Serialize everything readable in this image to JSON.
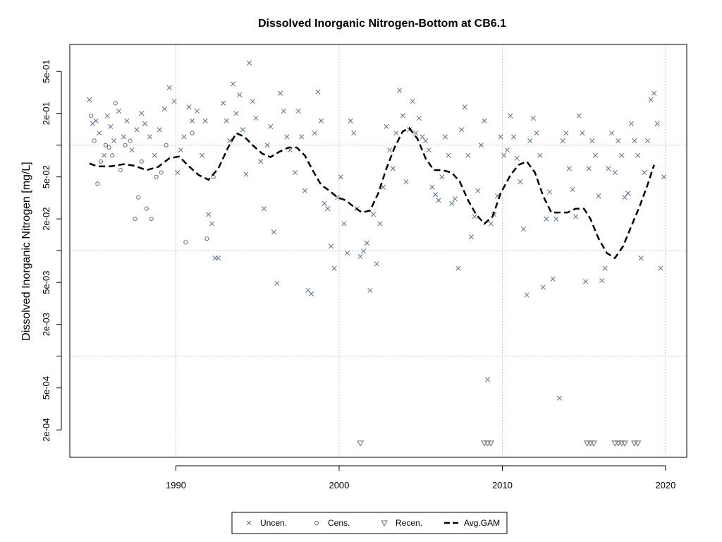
{
  "chart_data": {
    "type": "scatter",
    "title": "Dissolved Inorganic Nitrogen-Bottom at CB6.1",
    "xlabel": "",
    "ylabel": "Dissolved Inorganic Nitrogen [mg/L]",
    "xlim": [
      1983.5,
      2021.3
    ],
    "ylim": [
      0.00011,
      0.9
    ],
    "y_scale": "log",
    "grid": true,
    "x_ticks": [
      1990,
      2000,
      2010,
      2020
    ],
    "x_tick_labels": [
      "1990",
      "2000",
      "2010",
      "2020"
    ],
    "y_ticks": [
      0.0002,
      0.0005,
      0.002,
      0.005,
      0.02,
      0.05,
      0.2,
      0.5
    ],
    "y_tick_labels": [
      "2e-04",
      "5e-04",
      "2e-03",
      "5e-03",
      "2e-02",
      "5e-02",
      "2e-01",
      "5e-01"
    ],
    "y_gridlines": [
      0.001,
      0.01,
      0.1
    ],
    "x_gridlines": [
      1990,
      2000,
      2010,
      2020
    ],
    "legend_position": "bottom",
    "legend": [
      {
        "label": "Uncen.",
        "symbol": "x"
      },
      {
        "label": "Cens.",
        "symbol": "o"
      },
      {
        "label": "Recen.",
        "symbol": "v"
      },
      {
        "label": "Avg.GAM",
        "symbol": "dash"
      }
    ],
    "series": [
      {
        "name": "Uncen.",
        "marker": "x",
        "color": "#5a6f8a",
        "points": [
          [
            1984.7,
            0.27
          ],
          [
            1984.9,
            0.16
          ],
          [
            1985.1,
            0.17
          ],
          [
            1985.3,
            0.13
          ],
          [
            1985.6,
            0.08
          ],
          [
            1985.8,
            0.19
          ],
          [
            1986.0,
            0.15
          ],
          [
            1986.2,
            0.11
          ],
          [
            1986.5,
            0.21
          ],
          [
            1986.8,
            0.12
          ],
          [
            1987.0,
            0.17
          ],
          [
            1987.3,
            0.09
          ],
          [
            1987.6,
            0.14
          ],
          [
            1987.9,
            0.2
          ],
          [
            1988.1,
            0.16
          ],
          [
            1988.4,
            0.12
          ],
          [
            1988.7,
            0.08
          ],
          [
            1989.0,
            0.14
          ],
          [
            1989.3,
            0.22
          ],
          [
            1989.6,
            0.35
          ],
          [
            1989.9,
            0.26
          ],
          [
            1990.1,
            0.055
          ],
          [
            1990.3,
            0.09
          ],
          [
            1990.5,
            0.12
          ],
          [
            1990.8,
            0.23
          ],
          [
            1991.0,
            0.17
          ],
          [
            1991.3,
            0.21
          ],
          [
            1991.6,
            0.08
          ],
          [
            1991.8,
            0.17
          ],
          [
            1992.0,
            0.022
          ],
          [
            1992.2,
            0.018
          ],
          [
            1992.4,
            0.0085
          ],
          [
            1992.6,
            0.0085
          ],
          [
            1992.9,
            0.25
          ],
          [
            1993.1,
            0.17
          ],
          [
            1993.3,
            0.11
          ],
          [
            1993.5,
            0.38
          ],
          [
            1993.7,
            0.2
          ],
          [
            1993.9,
            0.3
          ],
          [
            1994.1,
            0.14
          ],
          [
            1994.3,
            0.053
          ],
          [
            1994.5,
            0.6
          ],
          [
            1994.7,
            0.26
          ],
          [
            1994.9,
            0.18
          ],
          [
            1995.2,
            0.07
          ],
          [
            1995.4,
            0.025
          ],
          [
            1995.6,
            0.1
          ],
          [
            1995.8,
            0.15
          ],
          [
            1996.0,
            0.015
          ],
          [
            1996.2,
            0.0049
          ],
          [
            1996.4,
            0.31
          ],
          [
            1996.6,
            0.21
          ],
          [
            1996.8,
            0.12
          ],
          [
            1997.0,
            0.09
          ],
          [
            1997.3,
            0.055
          ],
          [
            1997.5,
            0.21
          ],
          [
            1997.7,
            0.12
          ],
          [
            1997.9,
            0.037
          ],
          [
            1998.1,
            0.0042
          ],
          [
            1998.3,
            0.0039
          ],
          [
            1998.5,
            0.13
          ],
          [
            1998.7,
            0.32
          ],
          [
            1998.9,
            0.17
          ],
          [
            1999.1,
            0.028
          ],
          [
            1999.3,
            0.025
          ],
          [
            1999.5,
            0.011
          ],
          [
            1999.7,
            0.0068
          ],
          [
            1999.9,
            0.032
          ],
          [
            2000.1,
            0.05
          ],
          [
            2000.3,
            0.018
          ],
          [
            2000.5,
            0.0095
          ],
          [
            2000.7,
            0.17
          ],
          [
            2000.9,
            0.13
          ],
          [
            2001.1,
            0.025
          ],
          [
            2001.3,
            0.0088
          ],
          [
            2001.5,
            0.0099
          ],
          [
            2001.7,
            0.0118
          ],
          [
            2001.9,
            0.0042
          ],
          [
            2002.1,
            0.022
          ],
          [
            2002.3,
            0.0075
          ],
          [
            2002.5,
            0.018
          ],
          [
            2002.7,
            0.04
          ],
          [
            2002.9,
            0.15
          ],
          [
            2003.1,
            0.09
          ],
          [
            2003.3,
            0.06
          ],
          [
            2003.5,
            0.13
          ],
          [
            2003.7,
            0.33
          ],
          [
            2003.9,
            0.19
          ],
          [
            2004.1,
            0.045
          ],
          [
            2004.3,
            0.14
          ],
          [
            2004.5,
            0.26
          ],
          [
            2004.7,
            0.13
          ],
          [
            2004.9,
            0.18
          ],
          [
            2005.1,
            0.12
          ],
          [
            2005.3,
            0.11
          ],
          [
            2005.5,
            0.09
          ],
          [
            2005.7,
            0.04
          ],
          [
            2005.9,
            0.034
          ],
          [
            2006.1,
            0.03
          ],
          [
            2006.3,
            0.05
          ],
          [
            2006.5,
            0.12
          ],
          [
            2006.7,
            0.08
          ],
          [
            2006.9,
            0.028
          ],
          [
            2007.1,
            0.031
          ],
          [
            2007.3,
            0.0068
          ],
          [
            2007.5,
            0.14
          ],
          [
            2007.7,
            0.23
          ],
          [
            2007.9,
            0.08
          ],
          [
            2008.1,
            0.0135
          ],
          [
            2008.3,
            0.021
          ],
          [
            2008.5,
            0.037
          ],
          [
            2008.7,
            0.1
          ],
          [
            2008.9,
            0.17
          ],
          [
            2009.1,
            0.0006
          ],
          [
            2009.3,
            0.018
          ],
          [
            2009.5,
            0.022
          ],
          [
            2009.7,
            0.033
          ],
          [
            2009.9,
            0.12
          ],
          [
            2010.1,
            0.08
          ],
          [
            2010.3,
            0.09
          ],
          [
            2010.5,
            0.19
          ],
          [
            2010.7,
            0.12
          ],
          [
            2010.9,
            0.075
          ],
          [
            2011.1,
            0.045
          ],
          [
            2011.3,
            0.016
          ],
          [
            2011.5,
            0.0038
          ],
          [
            2011.7,
            0.11
          ],
          [
            2011.9,
            0.18
          ],
          [
            2012.1,
            0.13
          ],
          [
            2012.3,
            0.08
          ],
          [
            2012.5,
            0.0045
          ],
          [
            2012.7,
            0.02
          ],
          [
            2012.9,
            0.036
          ],
          [
            2013.1,
            0.0054
          ],
          [
            2013.3,
            0.02
          ],
          [
            2013.5,
            0.0004
          ],
          [
            2013.7,
            0.11
          ],
          [
            2013.9,
            0.13
          ],
          [
            2014.1,
            0.06
          ],
          [
            2014.3,
            0.038
          ],
          [
            2014.5,
            0.021
          ],
          [
            2014.7,
            0.19
          ],
          [
            2014.9,
            0.13
          ],
          [
            2015.1,
            0.0051
          ],
          [
            2015.3,
            0.06
          ],
          [
            2015.5,
            0.11
          ],
          [
            2015.7,
            0.08
          ],
          [
            2015.9,
            0.033
          ],
          [
            2016.1,
            0.0052
          ],
          [
            2016.3,
            0.0068
          ],
          [
            2016.5,
            0.06
          ],
          [
            2016.7,
            0.13
          ],
          [
            2016.9,
            0.055
          ],
          [
            2017.1,
            0.11
          ],
          [
            2017.3,
            0.08
          ],
          [
            2017.5,
            0.032
          ],
          [
            2017.7,
            0.035
          ],
          [
            2017.9,
            0.16
          ],
          [
            2018.1,
            0.11
          ],
          [
            2018.3,
            0.08
          ],
          [
            2018.5,
            0.0085
          ],
          [
            2018.7,
            0.055
          ],
          [
            2018.9,
            0.11
          ],
          [
            2019.1,
            0.27
          ],
          [
            2019.3,
            0.31
          ],
          [
            2019.5,
            0.16
          ],
          [
            2019.7,
            0.0068
          ],
          [
            2019.9,
            0.05
          ]
        ]
      },
      {
        "name": "Cens.",
        "marker": "o",
        "color": "#6e6e6e",
        "points": [
          [
            1984.8,
            0.19
          ],
          [
            1985.0,
            0.11
          ],
          [
            1985.2,
            0.043
          ],
          [
            1985.4,
            0.07
          ],
          [
            1985.7,
            0.1
          ],
          [
            1985.9,
            0.095
          ],
          [
            1986.1,
            0.08
          ],
          [
            1986.3,
            0.25
          ],
          [
            1986.6,
            0.058
          ],
          [
            1986.9,
            0.1
          ],
          [
            1987.2,
            0.11
          ],
          [
            1987.5,
            0.02
          ],
          [
            1987.7,
            0.032
          ],
          [
            1987.9,
            0.07
          ],
          [
            1988.2,
            0.025
          ],
          [
            1988.5,
            0.02
          ],
          [
            1988.8,
            0.05
          ],
          [
            1989.1,
            0.055
          ],
          [
            1989.4,
            0.1
          ],
          [
            1990.6,
            0.012
          ],
          [
            1991.0,
            0.13
          ],
          [
            1991.9,
            0.013
          ],
          [
            1992.3,
            0.05
          ]
        ]
      },
      {
        "name": "Recen.",
        "marker": "v",
        "color": "#6e6e6e",
        "points": [
          [
            2001.3,
            0.00015
          ],
          [
            2008.9,
            0.00015
          ],
          [
            2009.1,
            0.00015
          ],
          [
            2009.3,
            0.00015
          ],
          [
            2015.2,
            0.00015
          ],
          [
            2015.4,
            0.00015
          ],
          [
            2015.6,
            0.00015
          ],
          [
            2016.9,
            0.00015
          ],
          [
            2017.1,
            0.00015
          ],
          [
            2017.3,
            0.00015
          ],
          [
            2017.5,
            0.00015
          ],
          [
            2018.1,
            0.00015
          ],
          [
            2018.3,
            0.00015
          ]
        ]
      },
      {
        "name": "Avg.GAM",
        "type": "line",
        "color": "#000000",
        "points": [
          [
            1984.7,
            0.067
          ],
          [
            1985.2,
            0.063
          ],
          [
            1986.0,
            0.063
          ],
          [
            1986.8,
            0.066
          ],
          [
            1987.4,
            0.064
          ],
          [
            1988.2,
            0.058
          ],
          [
            1988.9,
            0.062
          ],
          [
            1989.6,
            0.075
          ],
          [
            1990.2,
            0.078
          ],
          [
            1990.8,
            0.063
          ],
          [
            1991.4,
            0.052
          ],
          [
            1992.0,
            0.047
          ],
          [
            1992.6,
            0.06
          ],
          [
            1993.2,
            0.095
          ],
          [
            1993.7,
            0.13
          ],
          [
            1994.2,
            0.12
          ],
          [
            1994.7,
            0.1
          ],
          [
            1995.3,
            0.083
          ],
          [
            1995.8,
            0.077
          ],
          [
            1996.3,
            0.086
          ],
          [
            1996.9,
            0.095
          ],
          [
            1997.4,
            0.095
          ],
          [
            1997.9,
            0.08
          ],
          [
            1998.4,
            0.057
          ],
          [
            1998.9,
            0.042
          ],
          [
            1999.4,
            0.037
          ],
          [
            1999.9,
            0.032
          ],
          [
            2000.4,
            0.03
          ],
          [
            2000.9,
            0.026
          ],
          [
            2001.4,
            0.023
          ],
          [
            2001.9,
            0.024
          ],
          [
            2002.4,
            0.035
          ],
          [
            2002.9,
            0.06
          ],
          [
            2003.4,
            0.095
          ],
          [
            2003.9,
            0.135
          ],
          [
            2004.3,
            0.145
          ],
          [
            2004.8,
            0.115
          ],
          [
            2005.3,
            0.075
          ],
          [
            2005.8,
            0.058
          ],
          [
            2006.3,
            0.058
          ],
          [
            2006.9,
            0.055
          ],
          [
            2007.4,
            0.045
          ],
          [
            2007.9,
            0.03
          ],
          [
            2008.4,
            0.022
          ],
          [
            2008.9,
            0.018
          ],
          [
            2009.4,
            0.021
          ],
          [
            2009.9,
            0.035
          ],
          [
            2010.5,
            0.052
          ],
          [
            2011.0,
            0.065
          ],
          [
            2011.5,
            0.07
          ],
          [
            2012.0,
            0.055
          ],
          [
            2012.5,
            0.033
          ],
          [
            2013.0,
            0.023
          ],
          [
            2013.5,
            0.023
          ],
          [
            2014.0,
            0.023
          ],
          [
            2014.5,
            0.025
          ],
          [
            2015.0,
            0.025
          ],
          [
            2015.4,
            0.02
          ],
          [
            2015.9,
            0.013
          ],
          [
            2016.4,
            0.0095
          ],
          [
            2016.9,
            0.0085
          ],
          [
            2017.4,
            0.011
          ],
          [
            2017.9,
            0.017
          ],
          [
            2018.4,
            0.026
          ],
          [
            2018.9,
            0.042
          ],
          [
            2019.3,
            0.065
          ]
        ]
      }
    ]
  }
}
